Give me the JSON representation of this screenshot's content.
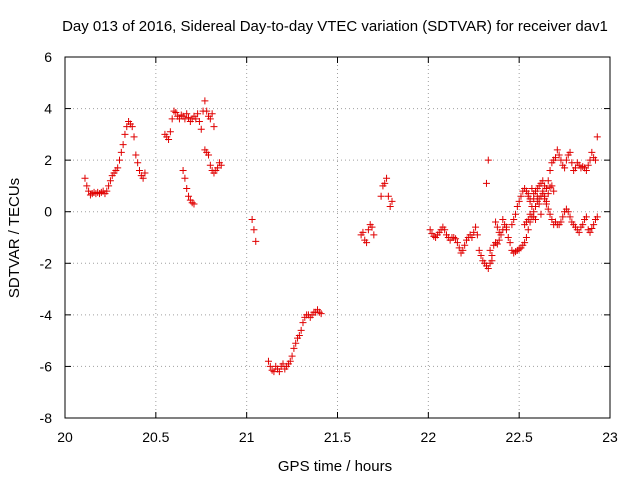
{
  "chart_data": {
    "type": "scatter",
    "title": "Day 013 of 2016, Sidereal Day-to-day VTEC variation (SDTVAR) for receiver dav1",
    "xlabel": "GPS time / hours",
    "ylabel": "SDTVAR / TECUs",
    "xlim": [
      20,
      23
    ],
    "ylim": [
      -8,
      6
    ],
    "xticks": [
      20,
      20.5,
      21,
      21.5,
      22,
      22.5,
      23
    ],
    "xtick_labels": [
      "20",
      "20.5",
      "21",
      "21.5",
      "22",
      "22.5",
      "23"
    ],
    "yticks": [
      -8,
      -6,
      -4,
      -2,
      0,
      2,
      4,
      6
    ],
    "ytick_labels": [
      "-8",
      "-6",
      "-4",
      "-2",
      "0",
      "2",
      "4",
      "6"
    ],
    "grid": true,
    "marker": "+",
    "color": "#e00000",
    "series": [
      {
        "name": "SDTVAR",
        "points": [
          [
            20.11,
            1.3
          ],
          [
            20.12,
            1.0
          ],
          [
            20.13,
            0.8
          ],
          [
            20.14,
            0.65
          ],
          [
            20.15,
            0.7
          ],
          [
            20.16,
            0.75
          ],
          [
            20.17,
            0.7
          ],
          [
            20.18,
            0.75
          ],
          [
            20.19,
            0.7
          ],
          [
            20.2,
            0.75
          ],
          [
            20.21,
            0.8
          ],
          [
            20.22,
            0.7
          ],
          [
            20.23,
            0.8
          ],
          [
            20.24,
            1.0
          ],
          [
            20.25,
            1.2
          ],
          [
            20.26,
            1.4
          ],
          [
            20.27,
            1.5
          ],
          [
            20.28,
            1.6
          ],
          [
            20.29,
            1.7
          ],
          [
            20.3,
            2.0
          ],
          [
            20.31,
            2.3
          ],
          [
            20.32,
            2.6
          ],
          [
            20.33,
            3.0
          ],
          [
            20.34,
            3.3
          ],
          [
            20.35,
            3.5
          ],
          [
            20.36,
            3.4
          ],
          [
            20.37,
            3.3
          ],
          [
            20.38,
            2.9
          ],
          [
            20.39,
            2.2
          ],
          [
            20.4,
            1.9
          ],
          [
            20.41,
            1.6
          ],
          [
            20.42,
            1.4
          ],
          [
            20.43,
            1.3
          ],
          [
            20.44,
            1.5
          ],
          [
            20.55,
            3.0
          ],
          [
            20.56,
            2.9
          ],
          [
            20.57,
            2.8
          ],
          [
            20.58,
            3.1
          ],
          [
            20.59,
            3.6
          ],
          [
            20.6,
            3.9
          ],
          [
            20.61,
            3.85
          ],
          [
            20.62,
            3.7
          ],
          [
            20.63,
            3.6
          ],
          [
            20.64,
            3.75
          ],
          [
            20.65,
            3.7
          ],
          [
            20.66,
            3.6
          ],
          [
            20.67,
            3.8
          ],
          [
            20.68,
            3.65
          ],
          [
            20.69,
            3.5
          ],
          [
            20.7,
            3.6
          ],
          [
            20.71,
            3.7
          ],
          [
            20.72,
            3.6
          ],
          [
            20.73,
            3.8
          ],
          [
            20.74,
            3.5
          ],
          [
            20.75,
            3.2
          ],
          [
            20.76,
            3.9
          ],
          [
            20.77,
            4.3
          ],
          [
            20.78,
            3.9
          ],
          [
            20.79,
            3.7
          ],
          [
            20.8,
            3.6
          ],
          [
            20.81,
            3.8
          ],
          [
            20.82,
            3.3
          ],
          [
            20.65,
            1.6
          ],
          [
            20.66,
            1.3
          ],
          [
            20.67,
            0.9
          ],
          [
            20.68,
            0.6
          ],
          [
            20.69,
            0.45
          ],
          [
            20.7,
            0.35
          ],
          [
            20.71,
            0.3
          ],
          [
            20.77,
            2.4
          ],
          [
            20.78,
            2.3
          ],
          [
            20.79,
            2.2
          ],
          [
            20.8,
            1.8
          ],
          [
            20.81,
            1.6
          ],
          [
            20.82,
            1.5
          ],
          [
            20.83,
            1.6
          ],
          [
            20.84,
            1.7
          ],
          [
            20.85,
            1.9
          ],
          [
            20.86,
            1.8
          ],
          [
            21.03,
            -0.3
          ],
          [
            21.04,
            -0.7
          ],
          [
            21.05,
            -1.15
          ],
          [
            21.12,
            -5.8
          ],
          [
            21.13,
            -6.0
          ],
          [
            21.14,
            -6.15
          ],
          [
            21.15,
            -6.2
          ],
          [
            21.16,
            -6.0
          ],
          [
            21.17,
            -6.1
          ],
          [
            21.18,
            -6.2
          ],
          [
            21.19,
            -6.0
          ],
          [
            21.2,
            -5.9
          ],
          [
            21.21,
            -6.1
          ],
          [
            21.22,
            -6.0
          ],
          [
            21.23,
            -5.9
          ],
          [
            21.24,
            -5.8
          ],
          [
            21.25,
            -5.6
          ],
          [
            21.26,
            -5.3
          ],
          [
            21.27,
            -5.1
          ],
          [
            21.28,
            -4.9
          ],
          [
            21.29,
            -4.8
          ],
          [
            21.3,
            -4.6
          ],
          [
            21.31,
            -4.3
          ],
          [
            21.32,
            -4.1
          ],
          [
            21.33,
            -4.0
          ],
          [
            21.34,
            -4.0
          ],
          [
            21.35,
            -4.1
          ],
          [
            21.36,
            -4.0
          ],
          [
            21.37,
            -3.9
          ],
          [
            21.38,
            -3.9
          ],
          [
            21.39,
            -3.8
          ],
          [
            21.4,
            -3.9
          ],
          [
            21.41,
            -3.95
          ],
          [
            21.63,
            -0.9
          ],
          [
            21.64,
            -0.8
          ],
          [
            21.65,
            -1.1
          ],
          [
            21.66,
            -1.2
          ],
          [
            21.67,
            -0.7
          ],
          [
            21.68,
            -0.5
          ],
          [
            21.69,
            -0.6
          ],
          [
            21.7,
            -0.9
          ],
          [
            21.74,
            0.6
          ],
          [
            21.75,
            1.0
          ],
          [
            21.76,
            1.1
          ],
          [
            21.77,
            1.3
          ],
          [
            21.78,
            0.6
          ],
          [
            21.79,
            0.2
          ],
          [
            21.8,
            0.4
          ],
          [
            22.01,
            -0.7
          ],
          [
            22.02,
            -0.85
          ],
          [
            22.03,
            -0.95
          ],
          [
            22.04,
            -1.0
          ],
          [
            22.05,
            -0.9
          ],
          [
            22.06,
            -0.8
          ],
          [
            22.07,
            -0.7
          ],
          [
            22.08,
            -0.6
          ],
          [
            22.09,
            -0.7
          ],
          [
            22.1,
            -0.9
          ],
          [
            22.11,
            -1.0
          ],
          [
            22.12,
            -1.1
          ],
          [
            22.13,
            -1.0
          ],
          [
            22.14,
            -1.0
          ],
          [
            22.15,
            -1.05
          ],
          [
            22.16,
            -1.2
          ],
          [
            22.17,
            -1.4
          ],
          [
            22.18,
            -1.6
          ],
          [
            22.19,
            -1.5
          ],
          [
            22.2,
            -1.3
          ],
          [
            22.21,
            -1.1
          ],
          [
            22.22,
            -1.0
          ],
          [
            22.23,
            -0.9
          ],
          [
            22.24,
            -1.0
          ],
          [
            22.25,
            -0.8
          ],
          [
            22.26,
            -0.6
          ],
          [
            22.27,
            -0.9
          ],
          [
            22.28,
            -1.5
          ],
          [
            22.29,
            -1.7
          ],
          [
            22.3,
            -1.9
          ],
          [
            22.31,
            -2.0
          ],
          [
            22.32,
            -2.1
          ],
          [
            22.33,
            -2.2
          ],
          [
            22.34,
            -2.0
          ],
          [
            22.35,
            -1.7
          ],
          [
            22.36,
            -1.3
          ],
          [
            22.37,
            -1.2
          ],
          [
            22.38,
            -1.25
          ],
          [
            22.39,
            -1.1
          ],
          [
            22.4,
            -0.9
          ],
          [
            22.41,
            -0.7
          ],
          [
            22.42,
            -0.5
          ],
          [
            22.43,
            -0.7
          ],
          [
            22.44,
            -1.0
          ],
          [
            22.45,
            -1.2
          ],
          [
            22.46,
            -1.5
          ],
          [
            22.47,
            -1.6
          ],
          [
            22.48,
            -1.55
          ],
          [
            22.49,
            -1.5
          ],
          [
            22.5,
            -1.45
          ],
          [
            22.51,
            -1.4
          ],
          [
            22.52,
            -1.3
          ],
          [
            22.53,
            -1.2
          ],
          [
            22.54,
            -1.0
          ],
          [
            22.55,
            -0.7
          ],
          [
            22.56,
            -0.4
          ],
          [
            22.57,
            -0.2
          ],
          [
            22.58,
            0.0
          ],
          [
            22.59,
            0.2
          ],
          [
            22.6,
            0.4
          ],
          [
            22.61,
            0.5
          ],
          [
            22.62,
            0.6
          ],
          [
            22.63,
            0.7
          ],
          [
            22.64,
            0.5
          ],
          [
            22.65,
            0.3
          ],
          [
            22.66,
            0.1
          ],
          [
            22.67,
            -0.1
          ],
          [
            22.68,
            -0.3
          ],
          [
            22.69,
            -0.5
          ],
          [
            22.7,
            -0.4
          ],
          [
            22.71,
            -0.5
          ],
          [
            22.72,
            -0.5
          ],
          [
            22.73,
            -0.4
          ],
          [
            22.74,
            -0.2
          ],
          [
            22.75,
            0.0
          ],
          [
            22.76,
            0.1
          ],
          [
            22.77,
            0.0
          ],
          [
            22.78,
            -0.2
          ],
          [
            22.79,
            -0.4
          ],
          [
            22.8,
            -0.5
          ],
          [
            22.81,
            -0.6
          ],
          [
            22.82,
            -0.7
          ],
          [
            22.83,
            -0.8
          ],
          [
            22.84,
            -0.6
          ],
          [
            22.85,
            -0.5
          ],
          [
            22.86,
            -0.3
          ],
          [
            22.87,
            -0.2
          ],
          [
            22.32,
            1.1
          ],
          [
            22.33,
            2.0
          ],
          [
            22.34,
            -1.5
          ],
          [
            22.35,
            -1.9
          ],
          [
            22.37,
            -0.4
          ],
          [
            22.38,
            -0.6
          ],
          [
            22.39,
            -0.8
          ],
          [
            22.41,
            -0.3
          ],
          [
            22.43,
            -0.6
          ],
          [
            22.46,
            -0.5
          ],
          [
            22.47,
            -0.3
          ],
          [
            22.48,
            -0.1
          ],
          [
            22.49,
            0.2
          ],
          [
            22.5,
            0.4
          ],
          [
            22.51,
            0.6
          ],
          [
            22.52,
            0.8
          ],
          [
            22.53,
            0.9
          ],
          [
            22.54,
            0.8
          ],
          [
            22.55,
            0.6
          ],
          [
            22.56,
            0.4
          ],
          [
            22.57,
            0.2
          ],
          [
            22.58,
            0.5
          ],
          [
            22.59,
            0.8
          ],
          [
            22.6,
            0.9
          ],
          [
            22.61,
            1.0
          ],
          [
            22.62,
            1.1
          ],
          [
            22.63,
            1.2
          ],
          [
            22.64,
            1.0
          ],
          [
            22.65,
            0.9
          ],
          [
            22.66,
            1.2
          ],
          [
            22.67,
            1.6
          ],
          [
            22.68,
            1.9
          ],
          [
            22.69,
            2.0
          ],
          [
            22.7,
            2.1
          ],
          [
            22.71,
            2.4
          ],
          [
            22.72,
            2.2
          ],
          [
            22.73,
            2.0
          ],
          [
            22.74,
            1.8
          ],
          [
            22.75,
            1.7
          ],
          [
            22.76,
            2.0
          ],
          [
            22.77,
            2.2
          ],
          [
            22.78,
            2.3
          ],
          [
            22.79,
            1.9
          ],
          [
            22.8,
            1.6
          ],
          [
            22.81,
            1.7
          ],
          [
            22.82,
            1.9
          ],
          [
            22.83,
            1.8
          ],
          [
            22.84,
            1.7
          ],
          [
            22.85,
            1.75
          ],
          [
            22.86,
            1.7
          ],
          [
            22.87,
            1.6
          ],
          [
            22.88,
            1.8
          ],
          [
            22.89,
            2.0
          ],
          [
            22.9,
            2.3
          ],
          [
            22.91,
            2.1
          ],
          [
            22.92,
            2.0
          ],
          [
            22.93,
            2.9
          ],
          [
            22.55,
            0.7
          ],
          [
            22.56,
            0.5
          ],
          [
            22.57,
            0.9
          ],
          [
            22.58,
            0.7
          ],
          [
            22.6,
            0.6
          ],
          [
            22.61,
            0.3
          ],
          [
            22.62,
            -0.1
          ],
          [
            22.63,
            0.8
          ],
          [
            22.64,
            0.6
          ],
          [
            22.65,
            0.4
          ],
          [
            22.66,
            0.7
          ],
          [
            22.67,
            0.95
          ],
          [
            22.68,
            1.0
          ],
          [
            22.69,
            0.8
          ],
          [
            22.53,
            -0.5
          ],
          [
            22.54,
            -0.4
          ],
          [
            22.55,
            -0.3
          ],
          [
            22.56,
            -0.1
          ],
          [
            22.58,
            -0.2
          ],
          [
            22.59,
            -0.3
          ],
          [
            22.88,
            -0.7
          ],
          [
            22.89,
            -0.8
          ],
          [
            22.9,
            -0.65
          ],
          [
            22.91,
            -0.5
          ],
          [
            22.92,
            -0.3
          ],
          [
            22.93,
            -0.2
          ]
        ]
      }
    ]
  }
}
